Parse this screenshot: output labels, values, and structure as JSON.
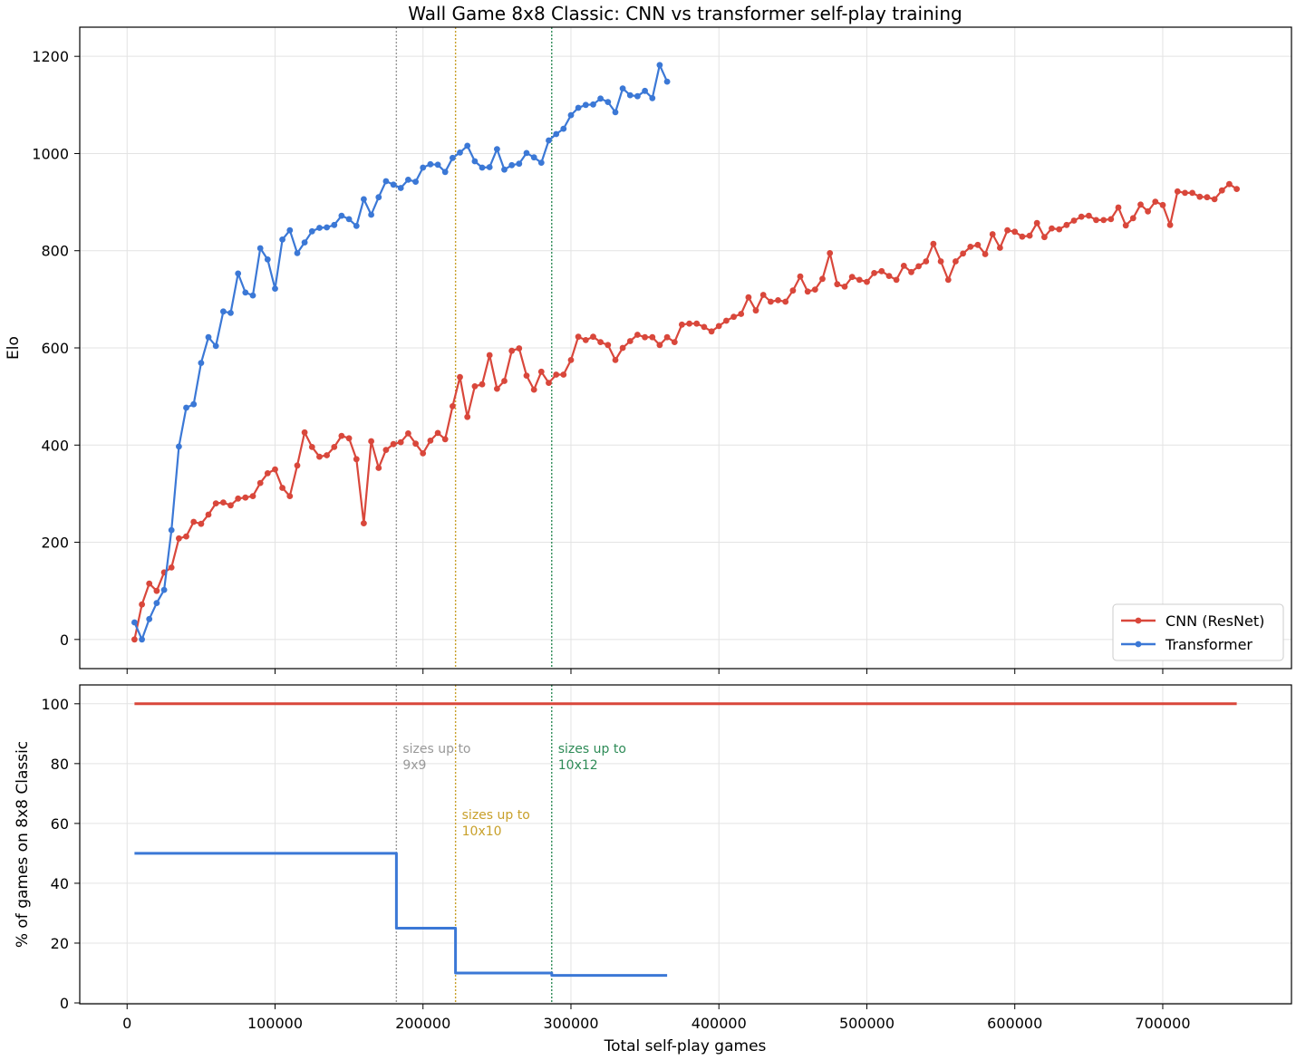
{
  "chart_data": [
    {
      "type": "line",
      "title": "Wall Game 8x8 Classic: CNN vs transformer self-play training",
      "xlabel": "",
      "ylabel": "Elo",
      "xlim": [
        -32000,
        787000
      ],
      "ylim": [
        -60,
        1260
      ],
      "xticks": [
        "0",
        "100000",
        "200000",
        "300000",
        "400000",
        "500000",
        "600000",
        "700000"
      ],
      "yticks": [
        "0",
        "200",
        "400",
        "600",
        "800",
        "1000",
        "1200"
      ],
      "grid": true,
      "legend": "lower right",
      "series": [
        {
          "name": "CNN (ResNet)",
          "color": "#d9473b",
          "x": [
            5000,
            10000,
            15000,
            20000,
            25000,
            30000,
            35000,
            40000,
            45000,
            50000,
            55000,
            60000,
            65000,
            70000,
            75000,
            80000,
            85000,
            90000,
            95000,
            100000,
            105000,
            110000,
            115000,
            120000,
            125000,
            130000,
            135000,
            140000,
            145000,
            150000,
            155000,
            160000,
            165000,
            170000,
            175000,
            180000,
            185000,
            190000,
            195000,
            200000,
            205000,
            210000,
            215000,
            220000,
            225000,
            230000,
            235000,
            240000,
            245000,
            250000,
            255000,
            260000,
            265000,
            270000,
            275000,
            280000,
            285000,
            290000,
            295000,
            300000,
            305000,
            310000,
            315000,
            320000,
            325000,
            330000,
            335000,
            340000,
            345000,
            350000,
            355000,
            360000,
            365000,
            370000,
            375000,
            380000,
            385000,
            390000,
            395000,
            400000,
            405000,
            410000,
            415000,
            420000,
            425000,
            430000,
            435000,
            440000,
            445000,
            450000,
            455000,
            460000,
            465000,
            470000,
            475000,
            480000,
            485000,
            490000,
            495000,
            500000,
            505000,
            510000,
            515000,
            520000,
            525000,
            530000,
            535000,
            540000,
            545000,
            550000,
            555000,
            560000,
            565000,
            570000,
            575000,
            580000,
            585000,
            590000,
            595000,
            600000,
            605000,
            610000,
            615000,
            620000,
            625000,
            630000,
            635000,
            640000,
            645000,
            650000,
            655000,
            660000,
            665000,
            670000,
            675000,
            680000,
            685000,
            690000,
            695000,
            700000,
            705000,
            710000,
            715000,
            720000,
            725000,
            730000,
            735000,
            740000,
            745000,
            750000
          ],
          "values": [
            0,
            72,
            115,
            100,
            138,
            148,
            208,
            212,
            242,
            238,
            257,
            280,
            282,
            276,
            290,
            292,
            295,
            322,
            342,
            350,
            312,
            295,
            358,
            426,
            396,
            376,
            379,
            396,
            419,
            414,
            371,
            239,
            408,
            353,
            390,
            402,
            406,
            424,
            403,
            383,
            409,
            425,
            412,
            480,
            540,
            458,
            521,
            525,
            585,
            516,
            532,
            594,
            599,
            543,
            514,
            551,
            528,
            545,
            545,
            575,
            623,
            616,
            623,
            612,
            606,
            575,
            600,
            614,
            627,
            622,
            622,
            606,
            622,
            612,
            648,
            650,
            650,
            643,
            634,
            645,
            656,
            664,
            670,
            704,
            677,
            709,
            695,
            698,
            695,
            718,
            747,
            716,
            720,
            742,
            795,
            731,
            726,
            746,
            740,
            736,
            754,
            758,
            748,
            740,
            769,
            756,
            768,
            778,
            814,
            778,
            740,
            778,
            794,
            808,
            812,
            793,
            834,
            806,
            842,
            839,
            829,
            831,
            857,
            828,
            846,
            844,
            853,
            862,
            870,
            872,
            863,
            863,
            865,
            889,
            852,
            867,
            895,
            881,
            901,
            894,
            853,
            922,
            919,
            919,
            911,
            910,
            906,
            924,
            937,
            927
          ]
        },
        {
          "name": "Transformer",
          "color": "#3b78d6",
          "x": [
            5000,
            10000,
            15000,
            20000,
            25000,
            30000,
            35000,
            40000,
            45000,
            50000,
            55000,
            60000,
            65000,
            70000,
            75000,
            80000,
            85000,
            90000,
            95000,
            100000,
            105000,
            110000,
            115000,
            120000,
            125000,
            130000,
            135000,
            140000,
            145000,
            150000,
            155000,
            160000,
            165000,
            170000,
            175000,
            180000,
            185000,
            190000,
            195000,
            200000,
            205000,
            210000,
            215000,
            220000,
            225000,
            230000,
            235000,
            240000,
            245000,
            250000,
            255000,
            260000,
            265000,
            270000,
            275000,
            280000,
            285000,
            290000,
            295000,
            300000,
            305000,
            310000,
            315000,
            320000,
            325000,
            330000,
            335000,
            340000,
            345000,
            350000,
            355000,
            360000,
            365000
          ],
          "values": [
            35,
            0,
            42,
            75,
            102,
            225,
            397,
            477,
            484,
            569,
            622,
            604,
            675,
            672,
            753,
            714,
            708,
            805,
            782,
            722,
            823,
            842,
            795,
            817,
            840,
            847,
            848,
            853,
            872,
            865,
            851,
            906,
            874,
            910,
            943,
            936,
            929,
            946,
            942,
            971,
            978,
            977,
            962,
            991,
            1002,
            1016,
            984,
            971,
            972,
            1009,
            967,
            976,
            979,
            1001,
            992,
            981,
            1027,
            1040,
            1051,
            1079,
            1094,
            1100,
            1101,
            1113,
            1106,
            1085,
            1134,
            1120,
            1118,
            1129,
            1114,
            1182,
            1148
          ]
        }
      ],
      "vlines": [
        {
          "x": 182000,
          "color": "#999999"
        },
        {
          "x": 222000,
          "color": "#c8a02a"
        },
        {
          "x": 287000,
          "color": "#2e8b57"
        }
      ]
    },
    {
      "type": "line",
      "title": "",
      "xlabel": "Total self-play games",
      "ylabel": "% of games on 8x8 Classic",
      "xlim": [
        -32000,
        787000
      ],
      "ylim": [
        -0.3,
        106.3
      ],
      "xticks": [
        "0",
        "100000",
        "200000",
        "300000",
        "400000",
        "500000",
        "600000",
        "700000"
      ],
      "yticks": [
        "0",
        "20",
        "40",
        "60",
        "80",
        "100"
      ],
      "grid": true,
      "series": [
        {
          "name": "CNN (ResNet)",
          "color": "#d9473b",
          "x": [
            5000,
            750000
          ],
          "values": [
            100,
            100
          ]
        },
        {
          "name": "Transformer",
          "color": "#3b78d6",
          "x": [
            5000,
            182000,
            182000,
            222000,
            222000,
            287000,
            287000,
            365000
          ],
          "values": [
            50,
            50,
            25,
            25,
            10,
            10,
            9.2,
            9.2
          ]
        }
      ],
      "annotations": [
        {
          "x": 182000,
          "color": "#999999",
          "text": [
            "sizes up to",
            "9x9"
          ]
        },
        {
          "x": 222000,
          "color": "#c8a02a",
          "text": [
            "sizes up to",
            "10x10"
          ]
        },
        {
          "x": 287000,
          "color": "#2e8b57",
          "text": [
            "sizes up to",
            "10x12"
          ]
        }
      ]
    }
  ]
}
